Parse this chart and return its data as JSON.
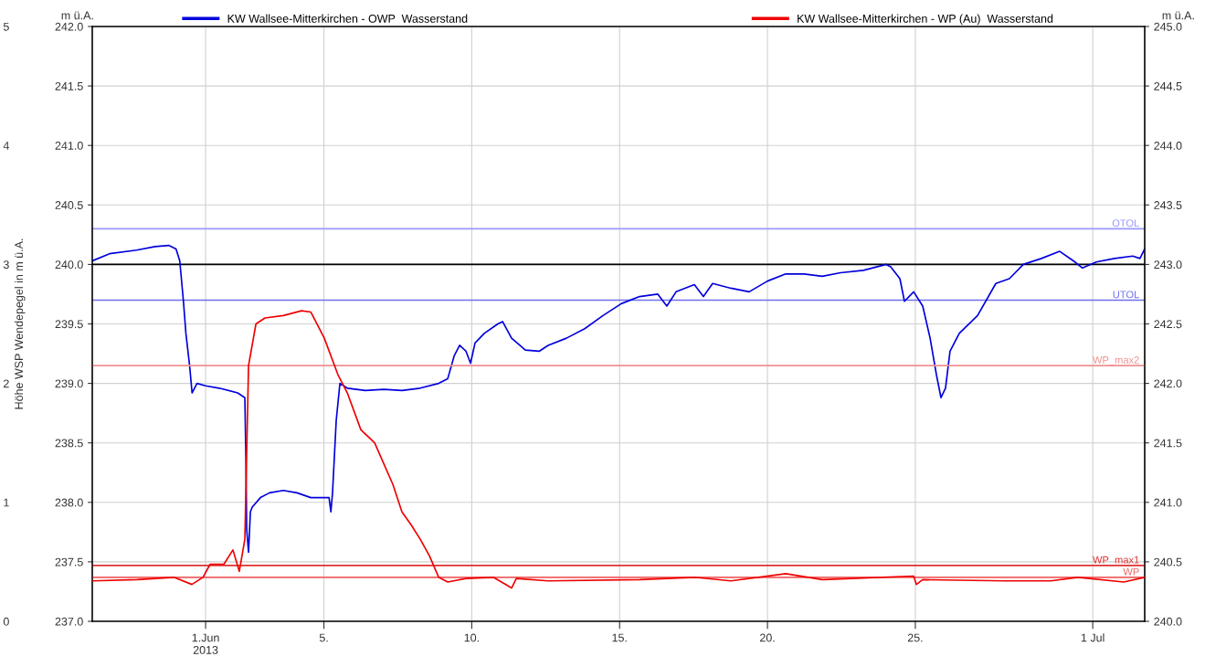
{
  "chart_data": {
    "type": "line",
    "ylabel": "m ü.A.",
    "y2label": "m ü.A.",
    "y3label": "Höhe WSP Wendepegel in m ü.A.",
    "legend": "top",
    "grid": true,
    "line_style": "solid",
    "marker": "none",
    "xlim": [
      "2013-05-28T04:00",
      "2013-07-02T18:10"
    ],
    "xticks": [
      {
        "value": "2013-06-01",
        "label": "1.Jun\n2013"
      },
      {
        "value": "2013-06-05",
        "label": "5."
      },
      {
        "value": "2013-06-10",
        "label": "10."
      },
      {
        "value": "2013-06-15",
        "label": "15."
      },
      {
        "value": "2013-06-20",
        "label": "20."
      },
      {
        "value": "2013-06-25",
        "label": "25."
      },
      {
        "value": "2013-07-01",
        "label": "1 Jul"
      }
    ],
    "ylim": [
      237,
      242
    ],
    "yticks": [
      {
        "value": 237,
        "label": "237.0"
      },
      {
        "value": 237.5,
        "label": "237.5"
      },
      {
        "value": 238,
        "label": "238.0"
      },
      {
        "value": 238.5,
        "label": "238.5"
      },
      {
        "value": 239,
        "label": "239.0"
      },
      {
        "value": 239.5,
        "label": "239.5"
      },
      {
        "value": 240,
        "label": "240.0"
      },
      {
        "value": 240.5,
        "label": "240.5"
      },
      {
        "value": 241,
        "label": "241.0"
      },
      {
        "value": 241.5,
        "label": "241.5"
      },
      {
        "value": 242,
        "label": "242.0"
      }
    ],
    "y2lim": [
      240,
      245
    ],
    "y2ticks": [
      {
        "value": 240,
        "label": "240.0"
      },
      {
        "value": 240.5,
        "label": "240.5"
      },
      {
        "value": 241,
        "label": "241.0"
      },
      {
        "value": 241.5,
        "label": "241.5"
      },
      {
        "value": 242,
        "label": "242.0"
      },
      {
        "value": 242.5,
        "label": "242.5"
      },
      {
        "value": 243,
        "label": "243.0"
      },
      {
        "value": 243.5,
        "label": "243.5"
      },
      {
        "value": 244,
        "label": "244.0"
      },
      {
        "value": 244.5,
        "label": "244.5"
      },
      {
        "value": 245,
        "label": "245.0"
      }
    ],
    "y3lim": [
      0,
      5
    ],
    "y3ticks": [
      0,
      1,
      2,
      3,
      4,
      5
    ],
    "ref_lines": [
      {
        "axis": "y",
        "value": 240.3,
        "label": "OTOL",
        "color": "#9999ff"
      },
      {
        "axis": "y",
        "value": 240.0,
        "label": null,
        "color": "#000000"
      },
      {
        "axis": "y",
        "value": 239.7,
        "label": "UTOL",
        "color": "#7070ee"
      },
      {
        "axis": "y2",
        "value": 242.15,
        "label": "WP_max2",
        "color": "#f09090"
      },
      {
        "axis": "y2",
        "value": 240.47,
        "label": "WP_max1",
        "color": "#e03030"
      },
      {
        "axis": "y2",
        "value": 240.37,
        "label": "WP",
        "color": "#f06060"
      }
    ],
    "series": [
      {
        "name": "KW Wallsee-Mitterkirchen - OWP  Wasserstand",
        "color": "#0000dd",
        "axis": "y",
        "x": [
          "2013-05-28T04:00",
          "2013-05-28T18:00",
          "2013-05-29T16:00",
          "2013-05-30T07:00",
          "2013-05-30T18:00",
          "2013-05-31T00:00",
          "2013-05-31T03:00",
          "2013-05-31T06:00",
          "2013-05-31T08:00",
          "2013-05-31T11:00",
          "2013-05-31T13:00",
          "2013-05-31T17:00",
          "2013-06-01T00:00",
          "2013-06-01T11:00",
          "2013-06-02T02:00",
          "2013-06-02T07:50",
          "2013-06-02T08:40",
          "2013-06-02T09:20",
          "2013-06-02T10:50",
          "2013-06-02T12:20",
          "2013-06-02T13:50",
          "2013-06-02T20:30",
          "2013-06-03T03:50",
          "2013-06-03T15:00",
          "2013-06-04T02:10",
          "2013-06-04T13:20",
          "2013-06-05T04:10",
          "2013-06-05T05:40",
          "2013-06-05T07:00",
          "2013-06-05T10:00",
          "2013-06-05T13:00",
          "2013-06-05T19:00",
          "2013-06-06T09:40",
          "2013-06-07T00:40",
          "2013-06-07T15:20",
          "2013-06-08T06:10",
          "2013-06-08T21:10",
          "2013-06-09T04:30",
          "2013-06-09T09:40",
          "2013-06-09T14:10",
          "2013-06-09T19:20",
          "2013-06-09T23:00",
          "2013-06-10T02:40",
          "2013-06-10T10:10",
          "2013-06-10T21:10",
          "2013-06-11T01:00",
          "2013-06-11T08:20",
          "2013-06-11T19:30",
          "2013-06-12T06:40",
          "2013-06-12T14:00",
          "2013-06-13T04:50",
          "2013-06-13T19:40",
          "2013-06-14T10:30",
          "2013-06-15T01:20",
          "2013-06-15T16:10",
          "2013-06-16T07:00",
          "2013-06-16T14:20",
          "2013-06-16T21:50",
          "2013-06-17T12:40",
          "2013-06-17T20:00",
          "2013-06-18T03:30",
          "2013-06-18T18:20",
          "2013-06-19T09:10",
          "2013-06-20T00:00",
          "2013-06-20T14:50",
          "2013-06-21T05:40",
          "2013-06-21T20:30",
          "2013-06-22T11:20",
          "2013-06-23T05:50",
          "2013-06-24T00:20",
          "2013-06-24T04:00",
          "2013-06-24T11:30",
          "2013-06-24T15:10",
          "2013-06-24T22:40",
          "2013-06-25T06:00",
          "2013-06-25T12:00",
          "2013-06-25T17:10",
          "2013-06-25T20:50",
          "2013-06-26T00:30",
          "2013-06-26T04:10",
          "2013-06-26T11:40",
          "2013-06-27T02:30",
          "2013-06-27T17:20",
          "2013-06-28T04:20",
          "2013-06-28T15:40",
          "2013-06-29T06:20",
          "2013-06-29T21:10",
          "2013-06-30T08:20",
          "2013-06-30T15:40",
          "2013-07-01T02:50",
          "2013-07-01T17:40",
          "2013-07-02T08:30",
          "2013-07-02T14:20",
          "2013-07-02T18:10"
        ],
        "values": [
          240.03,
          240.09,
          240.12,
          240.15,
          240.16,
          240.13,
          240.03,
          239.69,
          239.42,
          239.15,
          238.92,
          239.0,
          238.98,
          238.96,
          238.92,
          238.88,
          238.38,
          237.77,
          237.58,
          237.92,
          237.96,
          238.04,
          238.08,
          238.1,
          238.08,
          238.04,
          238.04,
          237.92,
          238.08,
          238.69,
          239.0,
          238.96,
          238.94,
          238.95,
          238.94,
          238.96,
          239.0,
          239.04,
          239.23,
          239.32,
          239.27,
          239.17,
          239.34,
          239.42,
          239.5,
          239.52,
          239.38,
          239.28,
          239.27,
          239.32,
          239.38,
          239.46,
          239.57,
          239.67,
          239.73,
          239.75,
          239.65,
          239.77,
          239.83,
          239.73,
          239.84,
          239.8,
          239.77,
          239.86,
          239.92,
          239.92,
          239.9,
          239.93,
          239.95,
          240.0,
          239.98,
          239.88,
          239.69,
          239.77,
          239.65,
          239.38,
          239.07,
          238.88,
          238.96,
          239.27,
          239.42,
          239.57,
          239.84,
          239.88,
          240.0,
          240.05,
          240.11,
          240.03,
          239.97,
          240.02,
          240.05,
          240.07,
          240.05,
          240.13
        ]
      },
      {
        "name": "KW Wallsee-Mitterkirchen - WP (Au)  Wasserstand",
        "color": "#ee0000",
        "axis": "y2",
        "x": [
          "2013-05-28T04:00",
          "2013-05-29T16:20",
          "2013-05-30T22:10",
          "2013-05-31T12:50",
          "2013-05-31T21:50",
          "2013-06-01T03:40",
          "2013-06-01T14:50",
          "2013-06-01T22:10",
          "2013-06-02T03:20",
          "2013-06-02T07:50",
          "2013-06-02T10:50",
          "2013-06-02T16:50",
          "2013-06-03T00:10",
          "2013-06-03T15:00",
          "2013-06-04T05:50",
          "2013-06-04T13:20",
          "2013-06-05T00:20",
          "2013-06-05T11:30",
          "2013-06-05T19:00",
          "2013-06-06T06:00",
          "2013-06-06T17:10",
          "2013-06-07T08:00",
          "2013-06-07T15:20",
          "2013-06-07T22:50",
          "2013-06-08T06:10",
          "2013-06-08T13:40",
          "2013-06-08T21:10",
          "2013-06-09T04:30",
          "2013-06-09T19:20",
          "2013-06-10T17:30",
          "2013-06-11T08:20",
          "2013-06-11T12:10",
          "2013-06-12T14:00",
          "2013-06-15T16:10",
          "2013-06-17T12:40",
          "2013-06-18T18:20",
          "2013-06-20T14:50",
          "2013-06-21T20:30",
          "2013-06-24T22:40",
          "2013-06-25T00:50",
          "2013-06-25T06:00",
          "2013-06-28T00:40",
          "2013-06-29T13:50",
          "2013-06-30T12:00",
          "2013-07-02T01:10",
          "2013-07-02T18:10"
        ],
        "values": [
          240.34,
          240.35,
          240.37,
          240.31,
          240.37,
          240.48,
          240.48,
          240.6,
          240.42,
          240.69,
          242.15,
          242.5,
          242.55,
          242.57,
          242.61,
          242.6,
          242.38,
          242.07,
          241.92,
          241.61,
          241.5,
          241.15,
          240.92,
          240.81,
          240.69,
          240.55,
          240.37,
          240.33,
          240.36,
          240.37,
          240.28,
          240.36,
          240.34,
          240.35,
          240.37,
          240.34,
          240.4,
          240.35,
          240.38,
          240.31,
          240.35,
          240.34,
          240.34,
          240.37,
          240.33,
          240.37
        ]
      }
    ]
  }
}
